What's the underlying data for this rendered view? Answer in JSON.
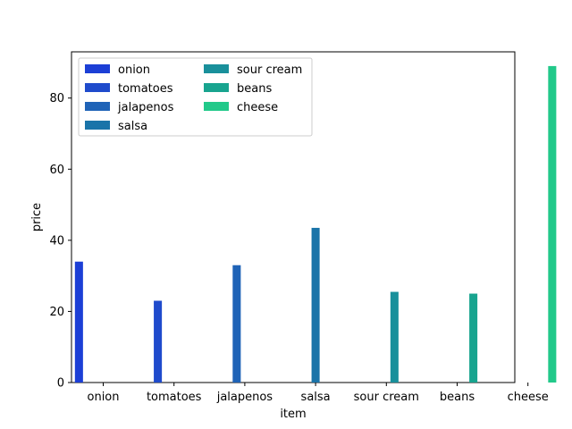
{
  "chart_data": {
    "type": "bar",
    "categories": [
      "onion",
      "tomatoes",
      "jalapenos",
      "salsa",
      "sour cream",
      "beans",
      "cheese"
    ],
    "series": [
      {
        "name": "onion",
        "color": "#1c3fd6",
        "values": [
          34,
          0,
          0,
          0,
          0,
          0,
          0
        ]
      },
      {
        "name": "tomatoes",
        "color": "#1f4bcc",
        "values": [
          0,
          23,
          0,
          0,
          0,
          0,
          0
        ]
      },
      {
        "name": "jalapenos",
        "color": "#1f63b7",
        "values": [
          0,
          0,
          33,
          0,
          0,
          0,
          0
        ]
      },
      {
        "name": "salsa",
        "color": "#1a74a9",
        "values": [
          0,
          0,
          0,
          43.5,
          0,
          0,
          0
        ]
      },
      {
        "name": "sour cream",
        "color": "#19909b",
        "values": [
          0,
          0,
          0,
          0,
          25.5,
          0,
          0
        ]
      },
      {
        "name": "beans",
        "color": "#18a48f",
        "values": [
          0,
          0,
          0,
          0,
          0,
          25,
          0
        ]
      },
      {
        "name": "cheese",
        "color": "#22c98a",
        "values": [
          0,
          0,
          0,
          0,
          0,
          0,
          89
        ]
      }
    ],
    "xlabel": "item",
    "ylabel": "price",
    "ylim": [
      0,
      93
    ],
    "yticks": [
      0,
      20,
      40,
      60,
      80
    ],
    "grid": false,
    "legend": {
      "placement": "top-left",
      "columns": 2
    }
  }
}
